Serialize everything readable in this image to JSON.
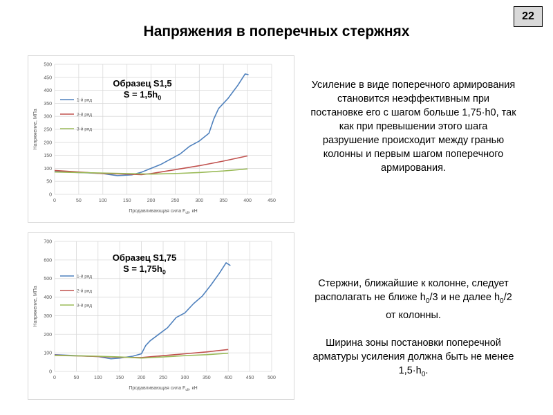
{
  "slide_number": "22",
  "title": "Напряжения в поперечных стержнях",
  "charts": [
    {
      "label_line1": "Образец S1,5",
      "label_line2_prefix": "S = 1,5h",
      "label_line2_sub": "0"
    },
    {
      "label_line1": "Образец S1,75",
      "label_line2_prefix": "S = 1,75h",
      "label_line2_sub": "0"
    }
  ],
  "text1": "Усиление в виде поперечного армирования становится неэффективным при постановке его с шагом больше 1,75·h0, так как при превышении этого шага разрушение происходит между гранью колонны и первым шагом поперечного армирования.",
  "text2": {
    "p1_a": "Стержни, ближайшие к колонне, следует располагать не ближе h",
    "p1_sub1": "0",
    "p1_b": "/3 и не далее h",
    "p1_sub2": "0",
    "p1_c": "/2 от колонны.",
    "p2_a": "Ширина зоны постановки поперечной арматуры усиления должна быть не менее 1,5·h",
    "p2_sub": "0",
    "p2_b": "."
  },
  "colors": {
    "row1": "#4f81bd",
    "row2": "#c0504d",
    "row3": "#9bbb59",
    "grid": "#d9d9d9",
    "tick_text": "#595959"
  },
  "chart_data": [
    {
      "type": "line",
      "xlabel": "Продавливающая сила F",
      "xlabel_sub": "ult",
      "xlabel_unit": ", кН",
      "ylabel": "Напряжение, МПа",
      "xlim": [
        0,
        450
      ],
      "ylim": [
        0,
        500
      ],
      "xticks": [
        0,
        50,
        100,
        150,
        200,
        250,
        300,
        350,
        400,
        450
      ],
      "yticks": [
        0,
        50,
        100,
        150,
        200,
        250,
        300,
        350,
        400,
        450,
        500
      ],
      "legend_position": "left",
      "series": [
        {
          "name": "1-й ряд",
          "color": "#4f81bd",
          "x": [
            0,
            50,
            100,
            130,
            160,
            180,
            200,
            220,
            240,
            260,
            280,
            300,
            320,
            330,
            340,
            360,
            380,
            395,
            402
          ],
          "y": [
            88,
            84,
            80,
            72,
            75,
            85,
            100,
            115,
            135,
            155,
            185,
            205,
            235,
            290,
            330,
            370,
            420,
            463,
            460
          ]
        },
        {
          "name": "2-й ряд",
          "color": "#c0504d",
          "x": [
            0,
            50,
            100,
            150,
            180,
            200,
            250,
            300,
            350,
            400
          ],
          "y": [
            92,
            86,
            80,
            78,
            76,
            80,
            95,
            110,
            128,
            148
          ]
        },
        {
          "name": "3-й ряд",
          "color": "#9bbb59",
          "x": [
            0,
            50,
            100,
            150,
            200,
            250,
            300,
            350,
            400
          ],
          "y": [
            86,
            84,
            82,
            80,
            78,
            80,
            84,
            90,
            98
          ]
        }
      ]
    },
    {
      "type": "line",
      "xlabel": "Продавливающая сила F",
      "xlabel_sub": "ult",
      "xlabel_unit": ", кН",
      "ylabel": "Напряжение, МПа",
      "xlim": [
        0,
        500
      ],
      "ylim": [
        0,
        700
      ],
      "xticks": [
        0,
        50,
        100,
        150,
        200,
        250,
        300,
        350,
        400,
        450,
        500
      ],
      "yticks": [
        0,
        100,
        200,
        300,
        400,
        500,
        600,
        700
      ],
      "legend_position": "left",
      "series": [
        {
          "name": "1-й ряд",
          "color": "#4f81bd",
          "x": [
            0,
            50,
            100,
            130,
            150,
            180,
            200,
            210,
            220,
            240,
            260,
            280,
            300,
            320,
            340,
            360,
            380,
            395,
            405
          ],
          "y": [
            90,
            85,
            80,
            68,
            72,
            82,
            95,
            140,
            165,
            200,
            235,
            290,
            315,
            365,
            405,
            465,
            530,
            585,
            570
          ]
        },
        {
          "name": "2-й ряд",
          "color": "#c0504d",
          "x": [
            0,
            50,
            100,
            150,
            200,
            250,
            300,
            350,
            400
          ],
          "y": [
            88,
            84,
            80,
            76,
            75,
            85,
            95,
            105,
            118
          ]
        },
        {
          "name": "3-й ряд",
          "color": "#9bbb59",
          "x": [
            0,
            50,
            100,
            150,
            200,
            250,
            300,
            350,
            400
          ],
          "y": [
            86,
            84,
            82,
            78,
            72,
            78,
            85,
            90,
            98
          ]
        }
      ]
    }
  ]
}
